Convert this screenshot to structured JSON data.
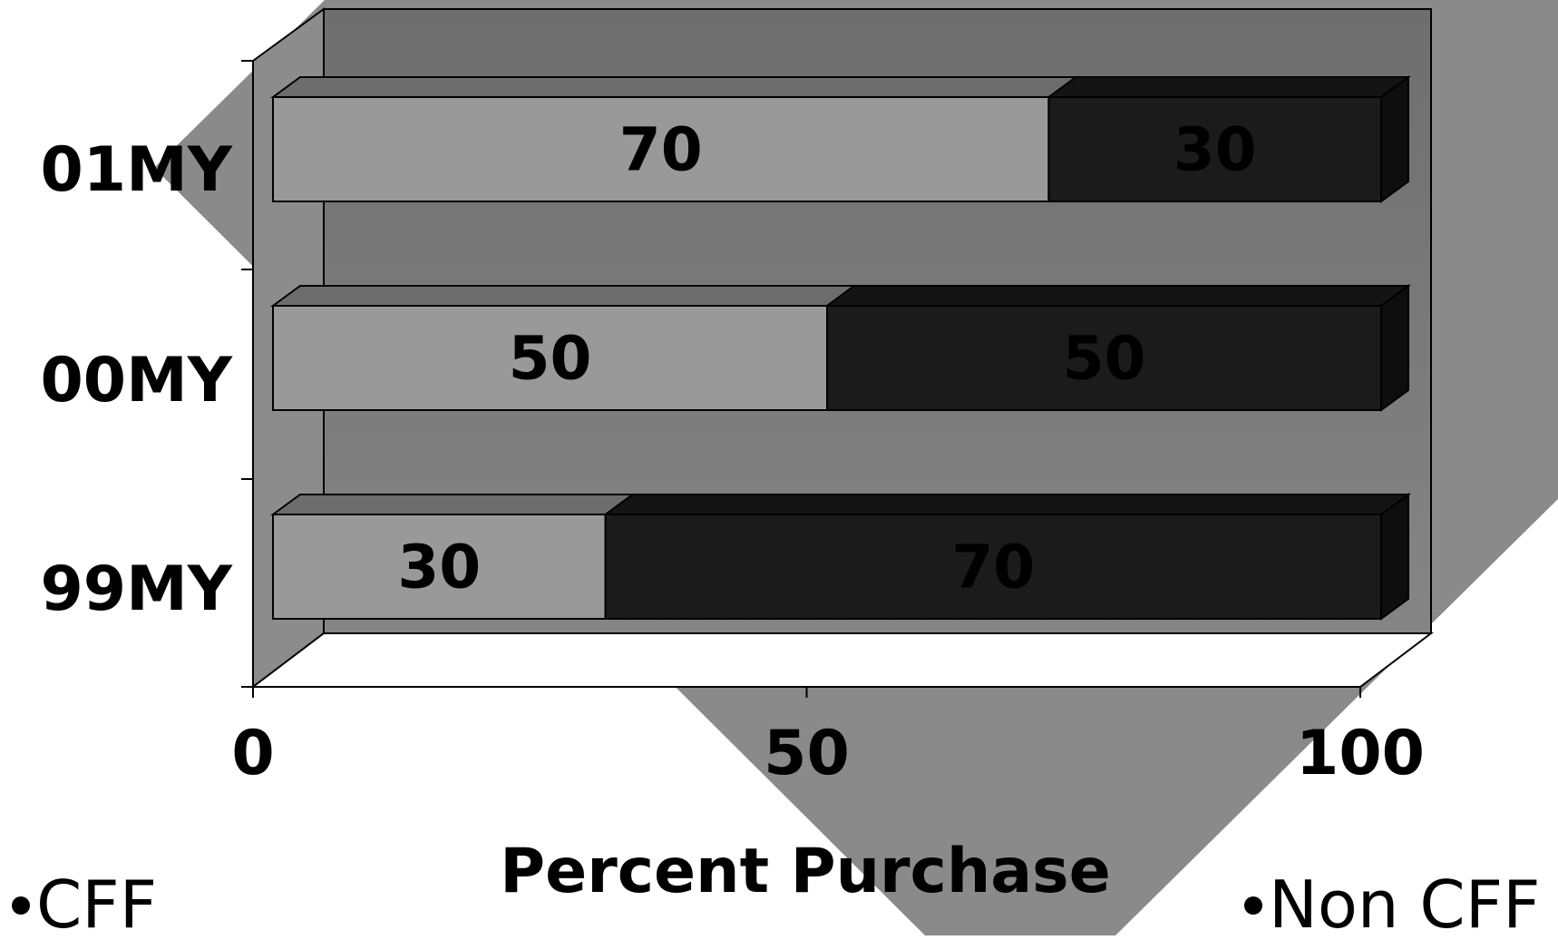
{
  "chart_data": {
    "type": "bar",
    "orientation": "horizontal",
    "stacked": true,
    "three_d": true,
    "categories": [
      "01MY",
      "00MY",
      "99MY"
    ],
    "series": [
      {
        "name": "CFF",
        "values": [
          70,
          50,
          30
        ]
      },
      {
        "name": "Non CFF",
        "values": [
          30,
          50,
          70
        ]
      }
    ],
    "xlabel": "Percent Purchase",
    "ylabel": "",
    "title": "",
    "xlim": [
      0,
      100
    ],
    "xticks": [
      "0",
      "50",
      "100"
    ],
    "legend_position": "bottom",
    "grid": false,
    "data_labels": true
  },
  "colors": {
    "cff_front": "#999999",
    "cff_top": "#6d6d6d",
    "non_cff_front": "#1b1b1b",
    "non_cff_top": "#141414",
    "non_cff_side": "#0e0e0e",
    "back_wall": "#757575",
    "side_wall": "#8c8c8c",
    "background_shape": "#8a8a8a",
    "background": "#ffffff"
  },
  "legend": {
    "items": [
      {
        "label": "CFF",
        "marker": "bullet"
      },
      {
        "label": "Non CFF",
        "marker": "bullet"
      }
    ]
  }
}
